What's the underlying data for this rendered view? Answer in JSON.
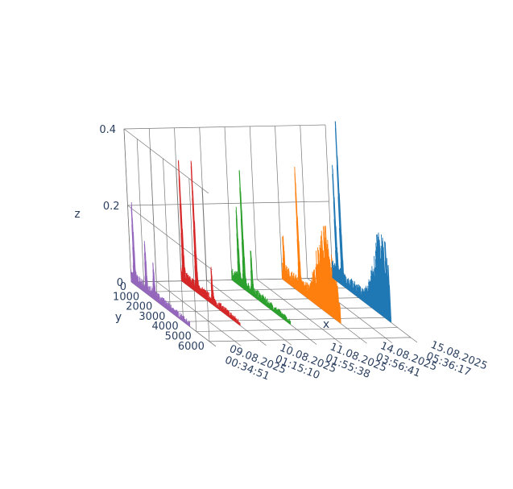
{
  "chart_data": {
    "type": "line",
    "subtype": "3d-line",
    "title": "",
    "xlabel": "x",
    "ylabel": "y",
    "zlabel": "z",
    "zlim": [
      0,
      0.4
    ],
    "ylim": [
      0,
      6500
    ],
    "z_ticks": [
      "0",
      "0.2",
      "0.4"
    ],
    "y_ticks": [
      "0",
      "1000",
      "2000",
      "3000",
      "4000",
      "5000",
      "6000"
    ],
    "x_ticks": [
      {
        "date": "09.08.2025",
        "time": "00:34:51"
      },
      {
        "date": "10.08.2025",
        "time": "01:15:10"
      },
      {
        "date": "11.08.2025",
        "time": "01:55:38"
      },
      {
        "date": "14.08.2025",
        "time": "03:56:41"
      },
      {
        "date": "15.08.2025",
        "time": "05:36:17"
      }
    ],
    "grid": true,
    "series": [
      {
        "x": "09.08.2025 00:34:51",
        "color": "#9467bd",
        "peaks": [
          {
            "y": 300,
            "z": 0.2
          },
          {
            "y": 1200,
            "z": 0.12
          },
          {
            "y": 1800,
            "z": 0.09
          }
        ],
        "baseline": 0.03
      },
      {
        "x": "10.08.2025 01:15:10",
        "color": "#d62728",
        "peaks": [
          {
            "y": 200,
            "z": 0.3
          },
          {
            "y": 1200,
            "z": 0.34
          },
          {
            "y": 2400,
            "z": 0.08
          }
        ],
        "baseline": 0.03
      },
      {
        "x": "11.08.2025 01:55:38",
        "color": "#2ca02c",
        "peaks": [
          {
            "y": 600,
            "z": 0.19
          },
          {
            "y": 1000,
            "z": 0.3
          },
          {
            "y": 1600,
            "z": 0.1
          }
        ],
        "baseline": 0.03
      },
      {
        "x": "14.08.2025 03:56:41",
        "color": "#ff7f0e",
        "peaks": [
          {
            "y": 200,
            "z": 0.1
          },
          {
            "y": 1400,
            "z": 0.3
          },
          {
            "y": 3500,
            "z": 0.22
          }
        ],
        "baseline": 0.04
      },
      {
        "x": "15.08.2025 05:36:17",
        "color": "#1f77b4",
        "peaks": [
          {
            "y": 400,
            "z": 0.28
          },
          {
            "y": 800,
            "z": 0.42
          },
          {
            "y": 4000,
            "z": 0.22
          }
        ],
        "baseline": 0.04
      }
    ]
  }
}
